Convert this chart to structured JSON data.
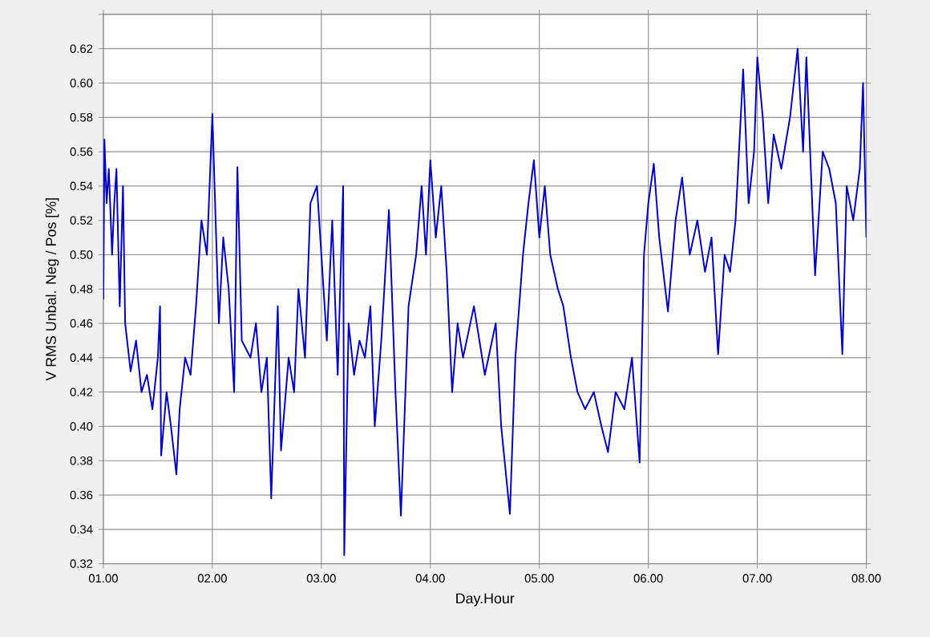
{
  "chart_data": {
    "type": "line",
    "xlabel": "Day.Hour",
    "ylabel": "V RMS Unbal. Neg / Pos [%]",
    "xlim": [
      1,
      8
    ],
    "xticks": [
      {
        "value": 1,
        "label": "01.00"
      },
      {
        "value": 2,
        "label": "02.00"
      },
      {
        "value": 3,
        "label": "03.00"
      },
      {
        "value": 4,
        "label": "04.00"
      },
      {
        "value": 5,
        "label": "05.00"
      },
      {
        "value": 6,
        "label": "06.00"
      },
      {
        "value": 7,
        "label": "07.00"
      },
      {
        "value": 8,
        "label": "08.00"
      }
    ],
    "ylim": [
      0.32,
      0.64
    ],
    "yticks": [
      {
        "value": 0.32,
        "label": "0.32"
      },
      {
        "value": 0.34,
        "label": "0.34"
      },
      {
        "value": 0.36,
        "label": "0.36"
      },
      {
        "value": 0.38,
        "label": "0.38"
      },
      {
        "value": 0.4,
        "label": "0.40"
      },
      {
        "value": 0.42,
        "label": "0.42"
      },
      {
        "value": 0.44,
        "label": "0.44"
      },
      {
        "value": 0.46,
        "label": "0.46"
      },
      {
        "value": 0.48,
        "label": "0.48"
      },
      {
        "value": 0.5,
        "label": "0.50"
      },
      {
        "value": 0.52,
        "label": "0.52"
      },
      {
        "value": 0.54,
        "label": "0.54"
      },
      {
        "value": 0.56,
        "label": "0.56"
      },
      {
        "value": 0.58,
        "label": "0.58"
      },
      {
        "value": 0.6,
        "label": "0.60"
      },
      {
        "value": 0.62,
        "label": "0.62"
      },
      {
        "value": 0.64,
        "label": null
      }
    ],
    "grid": true,
    "marker": "none",
    "line_style": "solid",
    "series": [
      {
        "color": "#0000cc",
        "x": [
          1.0,
          1.01,
          1.03,
          1.05,
          1.08,
          1.1,
          1.12,
          1.15,
          1.18,
          1.2,
          1.25,
          1.3,
          1.35,
          1.4,
          1.45,
          1.5,
          1.52,
          1.53,
          1.58,
          1.62,
          1.67,
          1.7,
          1.75,
          1.8,
          1.85,
          1.9,
          1.95,
          2.0,
          2.03,
          2.06,
          2.1,
          2.15,
          2.2,
          2.23,
          2.27,
          2.35,
          2.4,
          2.45,
          2.5,
          2.54,
          2.6,
          2.63,
          2.7,
          2.75,
          2.79,
          2.85,
          2.9,
          2.96,
          3.0,
          3.05,
          3.1,
          3.15,
          3.2,
          3.21,
          3.25,
          3.3,
          3.35,
          3.4,
          3.45,
          3.49,
          3.55,
          3.62,
          3.68,
          3.73,
          3.8,
          3.87,
          3.92,
          3.96,
          4.0,
          4.05,
          4.1,
          4.15,
          4.2,
          4.25,
          4.3,
          4.4,
          4.5,
          4.6,
          4.65,
          4.73,
          4.78,
          4.85,
          4.9,
          4.95,
          5.0,
          5.05,
          5.1,
          5.17,
          5.22,
          5.29,
          5.35,
          5.42,
          5.5,
          5.57,
          5.63,
          5.7,
          5.78,
          5.85,
          5.92,
          5.96,
          6.0,
          6.05,
          6.1,
          6.18,
          6.25,
          6.31,
          6.38,
          6.45,
          6.52,
          6.58,
          6.64,
          6.7,
          6.75,
          6.8,
          6.87,
          6.92,
          6.97,
          7.0,
          7.05,
          7.1,
          7.15,
          7.22,
          7.3,
          7.37,
          7.42,
          7.45,
          7.53,
          7.6,
          7.66,
          7.72,
          7.78,
          7.82,
          7.88,
          7.94,
          7.97,
          8.0
        ],
        "values": [
          0.474,
          0.567,
          0.53,
          0.55,
          0.5,
          0.53,
          0.55,
          0.47,
          0.54,
          0.46,
          0.432,
          0.45,
          0.42,
          0.43,
          0.41,
          0.44,
          0.47,
          0.383,
          0.42,
          0.4,
          0.372,
          0.41,
          0.44,
          0.43,
          0.47,
          0.52,
          0.5,
          0.582,
          0.52,
          0.46,
          0.51,
          0.48,
          0.42,
          0.551,
          0.45,
          0.44,
          0.46,
          0.42,
          0.44,
          0.358,
          0.47,
          0.386,
          0.44,
          0.42,
          0.48,
          0.44,
          0.53,
          0.54,
          0.5,
          0.45,
          0.52,
          0.43,
          0.54,
          0.325,
          0.46,
          0.43,
          0.45,
          0.44,
          0.47,
          0.4,
          0.45,
          0.526,
          0.42,
          0.348,
          0.47,
          0.5,
          0.54,
          0.5,
          0.555,
          0.51,
          0.54,
          0.49,
          0.42,
          0.46,
          0.44,
          0.47,
          0.43,
          0.46,
          0.4,
          0.349,
          0.44,
          0.5,
          0.53,
          0.555,
          0.51,
          0.54,
          0.5,
          0.48,
          0.47,
          0.44,
          0.42,
          0.41,
          0.42,
          0.4,
          0.385,
          0.42,
          0.41,
          0.44,
          0.379,
          0.5,
          0.53,
          0.553,
          0.51,
          0.467,
          0.52,
          0.545,
          0.5,
          0.52,
          0.49,
          0.51,
          0.442,
          0.5,
          0.49,
          0.52,
          0.608,
          0.53,
          0.56,
          0.615,
          0.58,
          0.53,
          0.57,
          0.55,
          0.58,
          0.62,
          0.56,
          0.615,
          0.488,
          0.56,
          0.55,
          0.53,
          0.442,
          0.54,
          0.52,
          0.55,
          0.6,
          0.51
        ]
      }
    ]
  }
}
